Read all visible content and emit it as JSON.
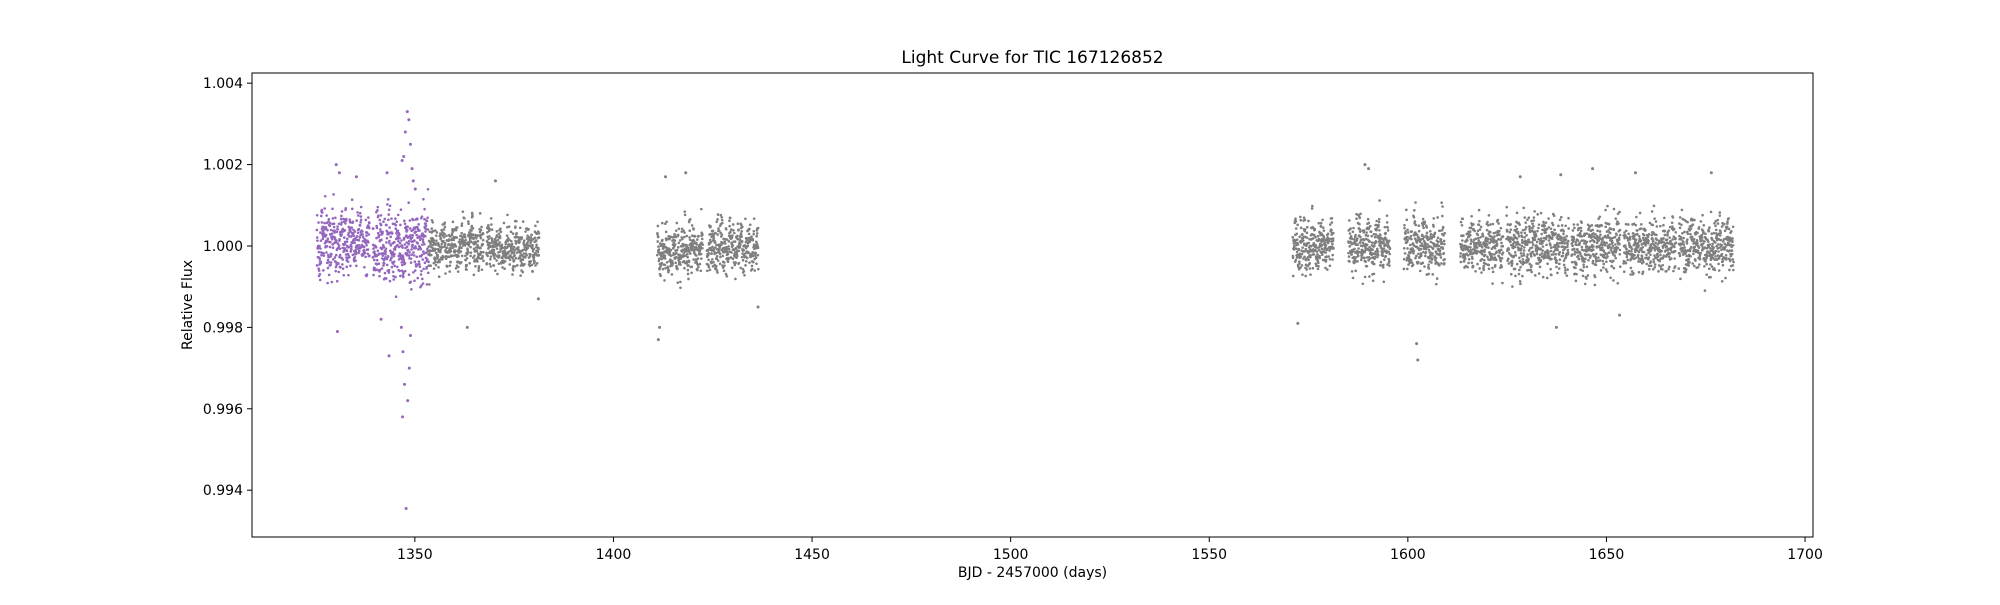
{
  "chart_data": {
    "type": "scatter",
    "title": "Light Curve for TIC 167126852",
    "xlabel": "BJD - 2457000 (days)",
    "ylabel": "Relative Flux",
    "xlim": [
      1309,
      1702
    ],
    "ylim": [
      0.99285,
      1.00425
    ],
    "xticks": [
      1350,
      1400,
      1450,
      1500,
      1550,
      1600,
      1650,
      1700
    ],
    "xtick_labels": [
      "1350",
      "1400",
      "1450",
      "1500",
      "1550",
      "1600",
      "1650",
      "1700"
    ],
    "yticks": [
      0.994,
      0.996,
      0.998,
      1.0,
      1.002,
      1.004
    ],
    "ytick_labels": [
      "0.994",
      "0.996",
      "0.998",
      "1.000",
      "1.002",
      "1.004"
    ],
    "grid": false,
    "legend": "none",
    "series": [
      {
        "color": "#9467bd",
        "segments": [
          {
            "x": [
              1325.3,
              1338.6
            ],
            "center": 1.0001,
            "spread": 0.00095
          },
          {
            "x": [
              1339.4,
              1353.5
            ],
            "center": 1.0,
            "spread": 0.0012
          }
        ],
        "points": [
          [
            1347.8,
            0.99355
          ],
          [
            1346.9,
            0.9958
          ],
          [
            1348.2,
            0.9962
          ],
          [
            1347.4,
            0.9966
          ],
          [
            1348.6,
            0.997
          ],
          [
            1343.5,
            0.9973
          ],
          [
            1347.0,
            0.9974
          ],
          [
            1346.6,
            0.998
          ],
          [
            1348.9,
            0.9978
          ],
          [
            1330.5,
            0.9979
          ],
          [
            1348.1,
            1.0033
          ],
          [
            1348.5,
            1.0031
          ],
          [
            1347.6,
            1.0028
          ],
          [
            1348.9,
            1.0025
          ],
          [
            1347.2,
            1.0022
          ],
          [
            1346.8,
            1.0021
          ],
          [
            1349.3,
            1.0019
          ],
          [
            1330.2,
            1.002
          ],
          [
            1331.0,
            1.0018
          ],
          [
            1335.3,
            1.0017
          ],
          [
            1343.0,
            1.0018
          ],
          [
            1349.6,
            1.0016
          ],
          [
            1350.1,
            1.0014
          ],
          [
            1341.5,
            0.9982
          ]
        ]
      },
      {
        "color": "#7f7f7f",
        "segments": [
          {
            "x": [
              1353.5,
              1367.3
            ],
            "center": 1.0,
            "spread": 0.0007
          },
          {
            "x": [
              1368.0,
              1381.3
            ],
            "center": 0.99995,
            "spread": 0.00065
          },
          {
            "x": [
              1411.0,
              1422.5
            ],
            "center": 0.9999,
            "spread": 0.0008
          },
          {
            "x": [
              1423.5,
              1436.5
            ],
            "center": 1.0,
            "spread": 0.0007
          },
          {
            "x": [
              1571.0,
              1581.3
            ],
            "center": 1.0,
            "spread": 0.0008
          },
          {
            "x": [
              1585.0,
              1595.5
            ],
            "center": 1.0,
            "spread": 0.00085
          },
          {
            "x": [
              1599.0,
              1609.3
            ],
            "center": 1.0,
            "spread": 0.0008
          },
          {
            "x": [
              1613.2,
              1624.0
            ],
            "center": 1.0,
            "spread": 0.0008
          },
          {
            "x": [
              1624.8,
              1640.5
            ],
            "center": 1.0,
            "spread": 0.00085
          },
          {
            "x": [
              1641.2,
              1653.5
            ],
            "center": 1.0,
            "spread": 0.00085
          },
          {
            "x": [
              1654.3,
              1667.5
            ],
            "center": 1.0,
            "spread": 0.0008
          },
          {
            "x": [
              1668.2,
              1682.0
            ],
            "center": 1.0,
            "spread": 0.00085
          }
        ],
        "points": [
          [
            1411.3,
            0.9977
          ],
          [
            1411.6,
            0.998
          ],
          [
            1363.2,
            0.998
          ],
          [
            1602.5,
            0.9972
          ],
          [
            1602.2,
            0.9976
          ],
          [
            1589.2,
            1.002
          ],
          [
            1590.1,
            1.0019
          ],
          [
            1370.3,
            1.0016
          ],
          [
            1418.2,
            1.0018
          ],
          [
            1413.1,
            1.0017
          ],
          [
            1646.5,
            1.0019
          ],
          [
            1676.4,
            1.0018
          ],
          [
            1657.3,
            1.0018
          ],
          [
            1628.3,
            1.0017
          ],
          [
            1638.5,
            1.00175
          ],
          [
            1637.4,
            0.998
          ],
          [
            1653.3,
            0.9983
          ],
          [
            1572.3,
            0.9981
          ],
          [
            1381.1,
            0.9987
          ],
          [
            1436.4,
            0.9985
          ]
        ]
      }
    ]
  }
}
